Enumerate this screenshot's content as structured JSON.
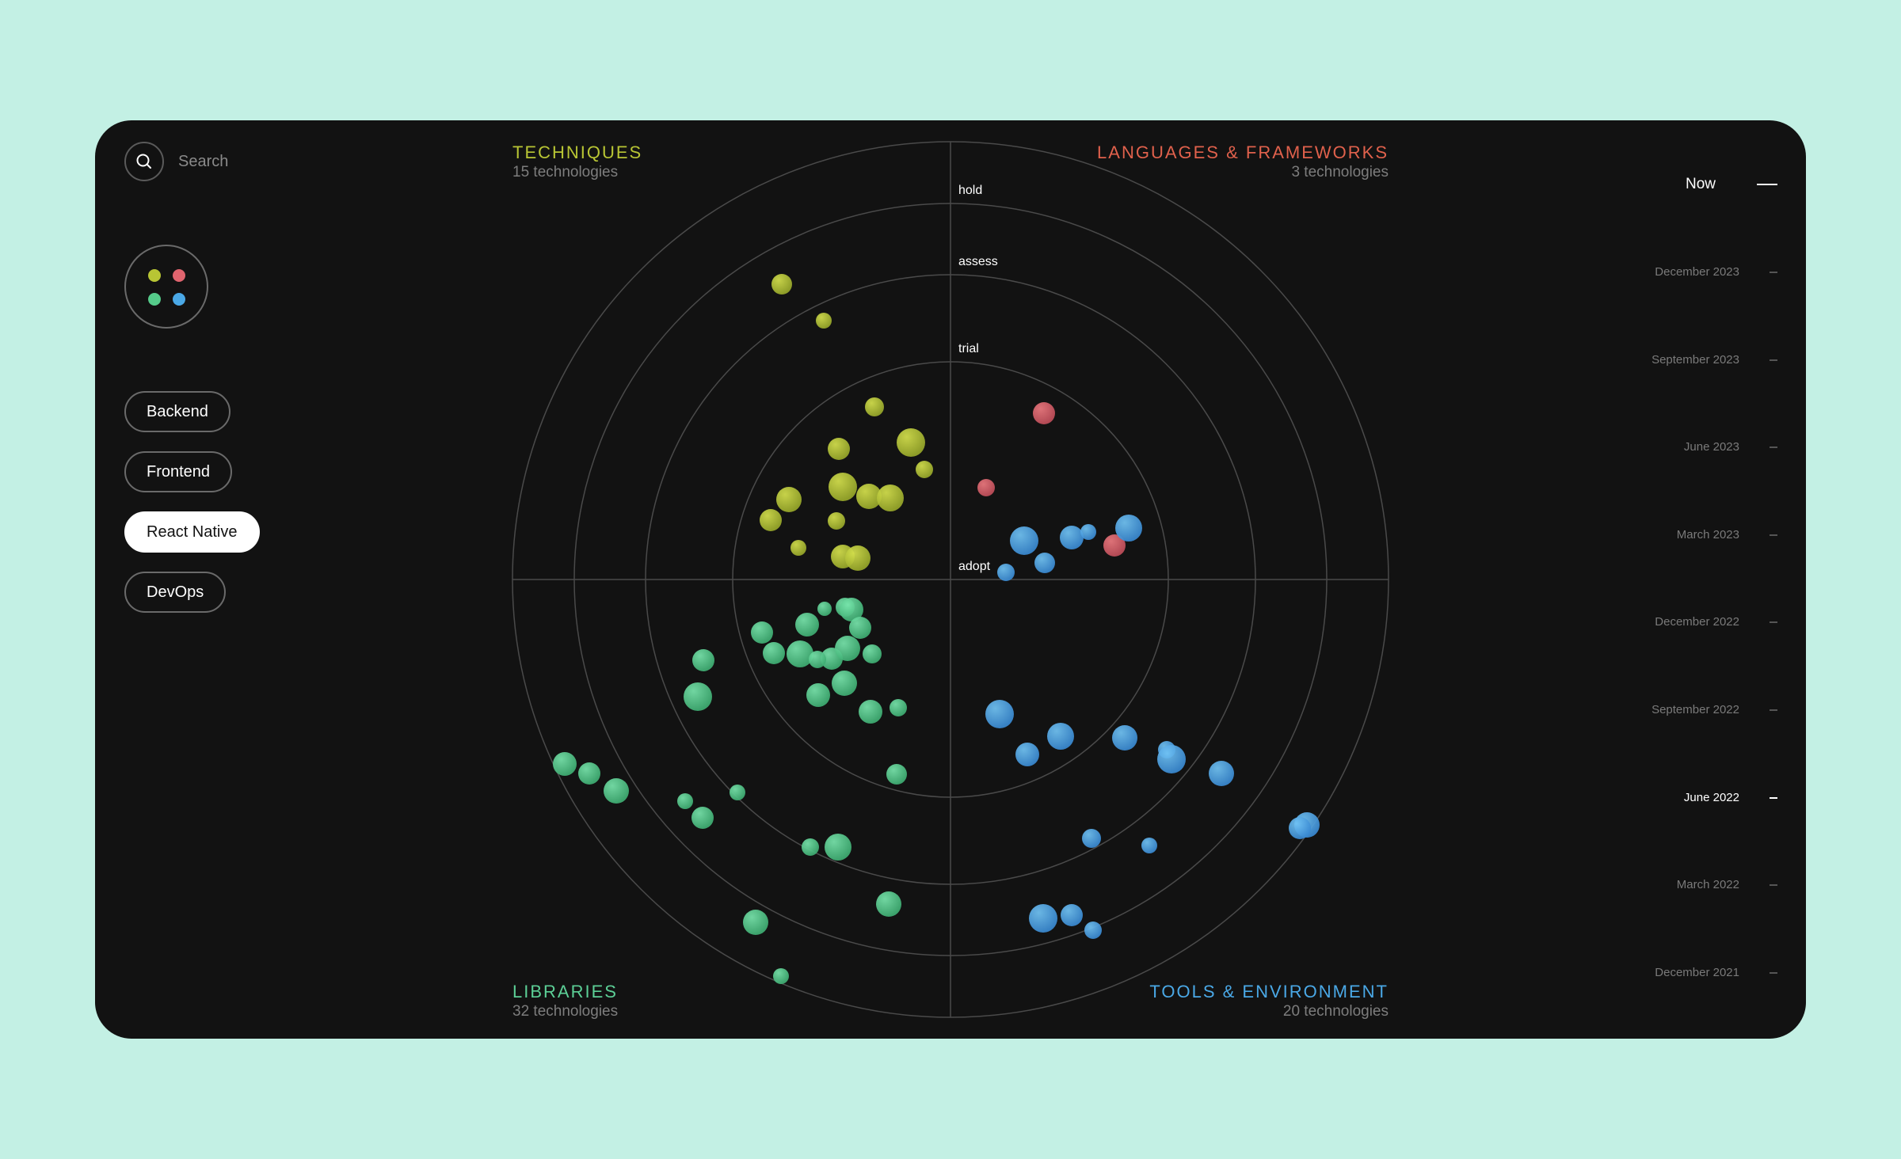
{
  "search": {
    "label": "Search",
    "icon": "search-icon"
  },
  "logo": {
    "icon": "four-dots-logo",
    "dot_colors": [
      "#b8c534",
      "#e0646e",
      "#55cb8a",
      "#4aa8e6"
    ]
  },
  "filters": [
    {
      "label": "Backend",
      "active": false
    },
    {
      "label": "Frontend",
      "active": false
    },
    {
      "label": "React Native",
      "active": true
    },
    {
      "label": "DevOps",
      "active": false
    }
  ],
  "rings": [
    "adopt",
    "trial",
    "assess",
    "hold"
  ],
  "quadrants": {
    "techniques": {
      "title": "TECHNIQUES",
      "count": "15 technologies",
      "color": "#b8c534"
    },
    "languages": {
      "title": "LANGUAGES & FRAMEWORKS",
      "count": "3 technologies",
      "color": "#e0614c"
    },
    "libraries": {
      "title": "LIBRARIES",
      "count": "32 technologies",
      "color": "#5ccf96"
    },
    "tools": {
      "title": "TOOLS & ENVIRONMENT",
      "count": "20 technologies",
      "color": "#4aa8e6"
    }
  },
  "timeline": {
    "now_label": "Now",
    "items": [
      {
        "label": "December 2023",
        "current": false
      },
      {
        "label": "September 2023",
        "current": false
      },
      {
        "label": "June 2023",
        "current": false
      },
      {
        "label": "March 2023",
        "current": false
      },
      {
        "label": "December 2022",
        "current": false
      },
      {
        "label": "September 2022",
        "current": false
      },
      {
        "label": "June 2022",
        "current": true
      },
      {
        "label": "March 2022",
        "current": false
      },
      {
        "label": "December 2021",
        "current": false
      }
    ]
  }
}
